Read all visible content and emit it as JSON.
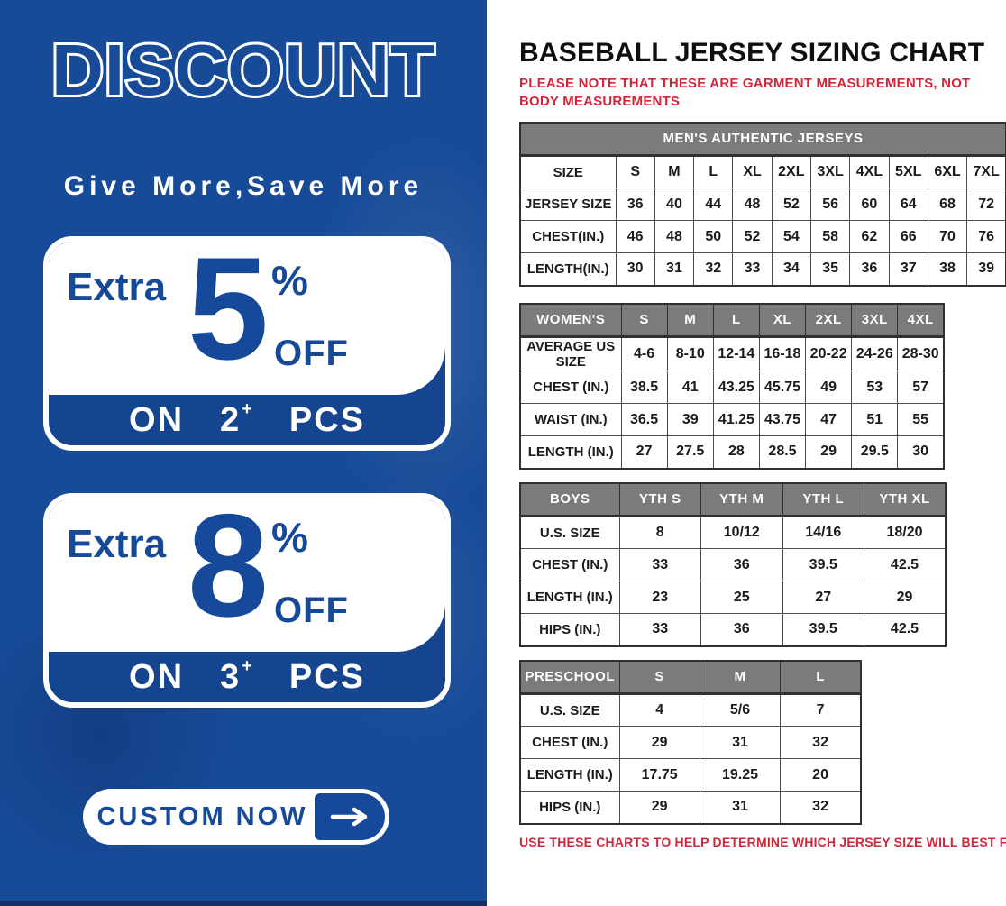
{
  "colors": {
    "blue": "#174b98",
    "blue_dark": "#113a7a",
    "card_text_blue": "#17499b",
    "band_blue": "#15458e",
    "header_gray": "#7b7b7b",
    "red": "#d0263a"
  },
  "left_panel": {
    "title": "DISCOUNT",
    "subtitle": "Give More,Save More",
    "offers": [
      {
        "prefix": "Extra",
        "value": "5",
        "percent": "%",
        "off_label": "OFF",
        "on_label": "ON",
        "qty": "2",
        "plus": "+",
        "pcs_label": "PCS"
      },
      {
        "prefix": "Extra",
        "value": "8",
        "percent": "%",
        "off_label": "OFF",
        "on_label": "ON",
        "qty": "3",
        "plus": "+",
        "pcs_label": "PCS"
      }
    ],
    "cta_label": "CUSTOM NOW"
  },
  "right_panel": {
    "title": "BASEBALL JERSEY SIZING CHART",
    "note_top": "PLEASE NOTE THAT THESE ARE GARMENT MEASUREMENTS, NOT BODY MEASUREMENTS",
    "note_bottom": "USE THESE CHARTS TO HELP DETERMINE WHICH JERSEY SIZE WILL BEST FIT YOU.",
    "tables": [
      {
        "id": "mens",
        "title": "MEN'S AUTHENTIC JERSEYS",
        "rows": [
          {
            "label": "SIZE",
            "values": [
              "S",
              "M",
              "L",
              "XL",
              "2XL",
              "3XL",
              "4XL",
              "5XL",
              "6XL",
              "7XL"
            ]
          },
          {
            "label": "JERSEY SIZE",
            "values": [
              "36",
              "40",
              "44",
              "48",
              "52",
              "56",
              "60",
              "64",
              "68",
              "72"
            ]
          },
          {
            "label": "CHEST(IN.)",
            "values": [
              "46",
              "48",
              "50",
              "52",
              "54",
              "58",
              "62",
              "66",
              "70",
              "76"
            ]
          },
          {
            "label": "LENGTH(IN.)",
            "values": [
              "30",
              "31",
              "32",
              "33",
              "34",
              "35",
              "36",
              "37",
              "38",
              "39"
            ]
          }
        ]
      },
      {
        "id": "womens",
        "header_row": {
          "label": "WOMEN'S",
          "values": [
            "S",
            "M",
            "L",
            "XL",
            "2XL",
            "3XL",
            "4XL"
          ]
        },
        "rows": [
          {
            "label": "AVERAGE US SIZE",
            "values": [
              "4-6",
              "8-10",
              "12-14",
              "16-18",
              "20-22",
              "24-26",
              "28-30"
            ]
          },
          {
            "label": "CHEST (IN.)",
            "values": [
              "38.5",
              "41",
              "43.25",
              "45.75",
              "49",
              "53",
              "57"
            ]
          },
          {
            "label": "WAIST (IN.)",
            "values": [
              "36.5",
              "39",
              "41.25",
              "43.75",
              "47",
              "51",
              "55"
            ]
          },
          {
            "label": "LENGTH (IN.)",
            "values": [
              "27",
              "27.5",
              "28",
              "28.5",
              "29",
              "29.5",
              "30"
            ]
          }
        ]
      },
      {
        "id": "boys",
        "header_row": {
          "label": "BOYS",
          "values": [
            "YTH S",
            "YTH M",
            "YTH L",
            "YTH XL"
          ]
        },
        "rows": [
          {
            "label": "U.S. SIZE",
            "values": [
              "8",
              "10/12",
              "14/16",
              "18/20"
            ]
          },
          {
            "label": "CHEST (IN.)",
            "values": [
              "33",
              "36",
              "39.5",
              "42.5"
            ]
          },
          {
            "label": "LENGTH (IN.)",
            "values": [
              "23",
              "25",
              "27",
              "29"
            ]
          },
          {
            "label": "HIPS (IN.)",
            "values": [
              "33",
              "36",
              "39.5",
              "42.5"
            ]
          }
        ]
      },
      {
        "id": "preschool",
        "header_row": {
          "label": "PRESCHOOL",
          "values": [
            "S",
            "M",
            "L"
          ]
        },
        "rows": [
          {
            "label": "U.S. SIZE",
            "values": [
              "4",
              "5/6",
              "7"
            ]
          },
          {
            "label": "CHEST (IN.)",
            "values": [
              "29",
              "31",
              "32"
            ]
          },
          {
            "label": "LENGTH (IN.)",
            "values": [
              "17.75",
              "19.25",
              "20"
            ]
          },
          {
            "label": "HIPS (IN.)",
            "values": [
              "29",
              "31",
              "32"
            ]
          }
        ]
      }
    ]
  }
}
